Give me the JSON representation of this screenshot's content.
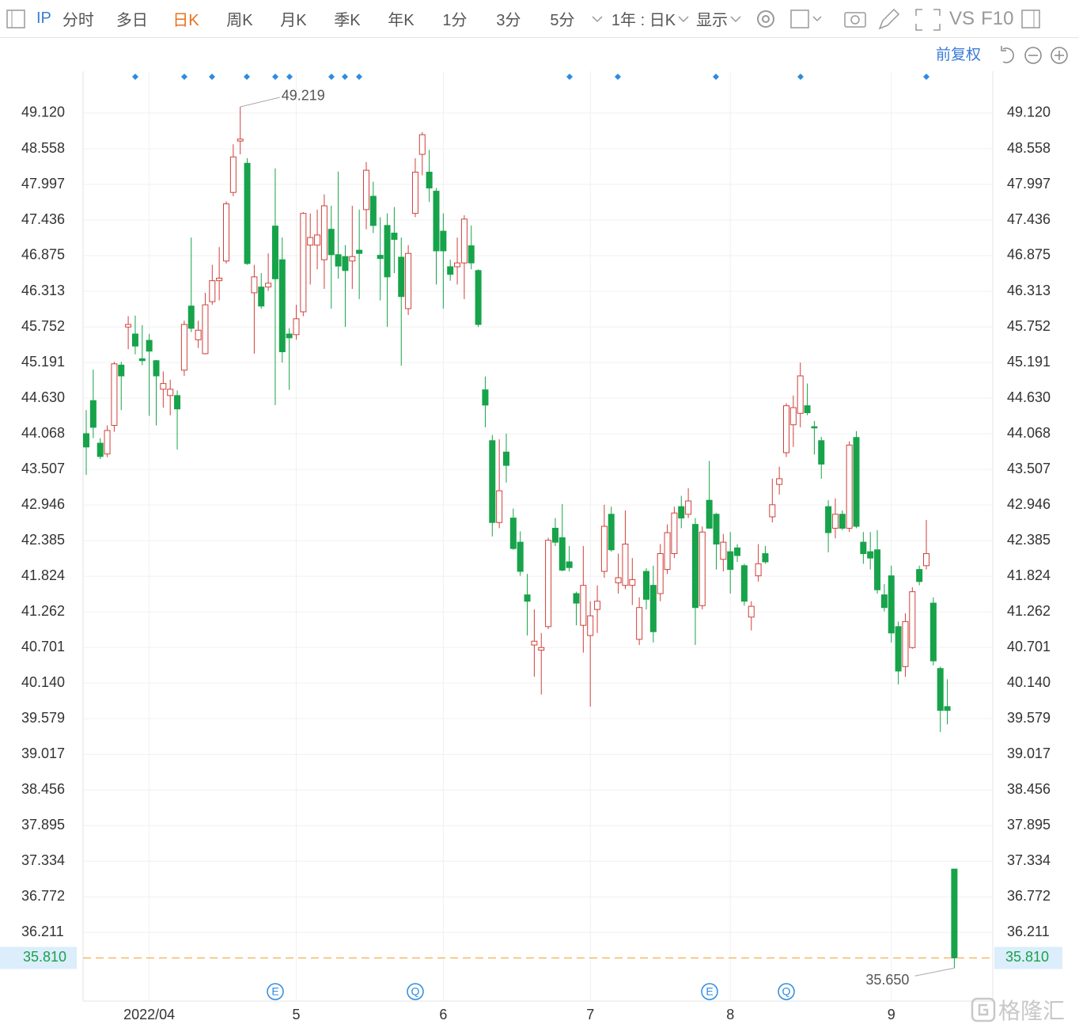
{
  "toolbar": {
    "symbol": "IP",
    "tabs": [
      "分时",
      "多日",
      "日K",
      "周K",
      "月K",
      "季K",
      "年K",
      "1分",
      "3分",
      "5分"
    ],
    "active": "日K",
    "range": "1年 : 日K",
    "display": "显示",
    "vs": "VS",
    "f10": "F10"
  },
  "adjust": "前复权",
  "watermark": "格隆汇",
  "events": [
    "E",
    "Q",
    "E",
    "Q"
  ],
  "chart_data": {
    "type": "candlestick",
    "up_color": "#d0413c",
    "down_color": "#17a34a",
    "last_color": "#f0a030",
    "grid": true,
    "ylim": [
      35.13,
      49.78
    ],
    "yticks": [
      {
        "value": 49.12,
        "label": "49.120"
      },
      {
        "value": 48.558,
        "label": "48.558"
      },
      {
        "value": 47.997,
        "label": "47.997"
      },
      {
        "value": 47.436,
        "label": "47.436"
      },
      {
        "value": 46.875,
        "label": "46.875"
      },
      {
        "value": 46.313,
        "label": "46.313"
      },
      {
        "value": 45.752,
        "label": "45.752"
      },
      {
        "value": 45.191,
        "label": "45.191"
      },
      {
        "value": 44.63,
        "label": "44.630"
      },
      {
        "value": 44.068,
        "label": "44.068"
      },
      {
        "value": 43.507,
        "label": "43.507"
      },
      {
        "value": 42.946,
        "label": "42.946"
      },
      {
        "value": 42.385,
        "label": "42.385"
      },
      {
        "value": 41.824,
        "label": "41.824"
      },
      {
        "value": 41.262,
        "label": "41.262"
      },
      {
        "value": 40.701,
        "label": "40.701"
      },
      {
        "value": 40.14,
        "label": "40.140"
      },
      {
        "value": 39.579,
        "label": "39.579"
      },
      {
        "value": 39.017,
        "label": "39.017"
      },
      {
        "value": 38.456,
        "label": "38.456"
      },
      {
        "value": 37.895,
        "label": "37.895"
      },
      {
        "value": 37.334,
        "label": "37.334"
      },
      {
        "value": 36.772,
        "label": "36.772"
      },
      {
        "value": 36.211,
        "label": "36.211"
      }
    ],
    "categories": [
      null,
      null,
      null,
      null,
      null,
      null,
      null,
      null,
      null,
      "2022/04",
      null,
      null,
      null,
      null,
      null,
      null,
      null,
      null,
      null,
      null,
      null,
      null,
      null,
      null,
      null,
      null,
      null,
      null,
      null,
      null,
      "5",
      null,
      null,
      null,
      null,
      null,
      null,
      null,
      null,
      null,
      null,
      null,
      null,
      null,
      null,
      null,
      null,
      null,
      null,
      null,
      null,
      "6",
      null,
      null,
      null,
      null,
      null,
      null,
      null,
      null,
      null,
      null,
      null,
      null,
      null,
      null,
      null,
      null,
      null,
      null,
      null,
      null,
      "7",
      null,
      null,
      null,
      null,
      null,
      null,
      null,
      null,
      null,
      null,
      null,
      null,
      null,
      null,
      null,
      null,
      null,
      null,
      null,
      "8",
      null,
      null,
      null,
      null,
      null,
      null,
      null,
      null,
      null,
      null,
      null,
      null,
      null,
      null,
      null,
      null,
      null,
      null,
      null,
      null,
      null,
      null,
      "9",
      null,
      null,
      null,
      null,
      null,
      null,
      null,
      null,
      null
    ],
    "open": [
      44.07,
      44.59,
      43.92,
      43.75,
      44.2,
      45.15,
      45.75,
      45.64,
      45.25,
      45.54,
      45.22,
      44.77,
      44.67,
      44.67,
      45.07,
      46.08,
      45.55,
      45.33,
      46.15,
      46.48,
      46.79,
      47.87,
      48.68,
      48.33,
      46.29,
      46.38,
      46.38,
      47.34,
      46.81,
      45.64,
      45.63,
      45.99,
      47.04,
      47.04,
      46.81,
      47.29,
      46.89,
      46.86,
      46.79,
      46.96,
      47.6,
      47.81,
      46.88,
      47.35,
      47.23,
      46.85,
      46.04,
      47.54,
      48.47,
      48.19,
      47.89,
      47.26,
      46.7,
      46.7,
      46.76,
      47.03,
      46.64,
      44.76,
      43.96,
      42.67,
      43.78,
      42.74,
      42.36,
      41.53,
      40.74,
      40.66,
      41.03,
      42.58,
      42.43,
      42.05,
      41.55,
      41.05,
      40.89,
      41.3,
      41.9,
      42.8,
      41.72,
      41.68,
      41.68,
      40.83,
      41.9,
      41.68,
      41.55,
      41.93,
      42.18,
      42.92,
      42.8,
      42.64,
      41.36,
      43.02,
      42.8,
      42.09,
      42.21,
      42.27,
      41.99,
      41.18,
      41.83,
      42.18,
      42.76,
      43.27,
      43.77,
      44.21,
      44.39,
      44.51,
      44.18,
      43.96,
      42.92,
      42.58,
      42.8,
      42.58,
      44.01,
      42.36,
      42.21,
      42.24,
      41.53,
      41.83,
      41.03,
      40.4,
      40.7,
      41.93,
      41.99,
      41.4,
      40.37,
      39.77,
      37.21
    ],
    "high": [
      44.44,
      45.08,
      44.0,
      44.2,
      45.2,
      45.2,
      45.92,
      45.93,
      45.78,
      45.64,
      45.23,
      45.05,
      44.92,
      44.75,
      45.85,
      47.16,
      45.85,
      46.29,
      46.73,
      47.01,
      47.73,
      48.63,
      49.219,
      48.41,
      46.73,
      46.6,
      46.91,
      48.25,
      47.16,
      45.73,
      46.1,
      47.56,
      47.54,
      47.6,
      47.84,
      47.66,
      48.2,
      47.04,
      47.66,
      47.6,
      48.35,
      48.04,
      47.48,
      47.54,
      47.64,
      47.16,
      47.04,
      48.41,
      48.82,
      48.54,
      47.94,
      47.54,
      46.81,
      47.16,
      47.51,
      47.35,
      46.66,
      44.97,
      44.05,
      43.98,
      44.07,
      42.89,
      42.53,
      41.86,
      41.3,
      40.93,
      42.43,
      42.74,
      42.96,
      42.3,
      41.58,
      42.3,
      41.43,
      41.68,
      42.95,
      42.92,
      42.18,
      42.86,
      42.11,
      41.49,
      41.95,
      41.99,
      42.33,
      42.64,
      42.92,
      43.09,
      43.21,
      42.74,
      42.61,
      43.64,
      42.82,
      42.49,
      42.52,
      42.33,
      42.02,
      41.43,
      42.33,
      42.3,
      43.36,
      43.55,
      44.55,
      44.67,
      45.19,
      44.86,
      44.27,
      44.02,
      43.02,
      43.05,
      42.86,
      43.95,
      44.11,
      42.52,
      42.52,
      42.55,
      41.7,
      41.99,
      41.11,
      41.24,
      41.65,
      41.99,
      42.71,
      41.49,
      40.4,
      40.2,
      37.21
    ],
    "low": [
      43.42,
      44.0,
      43.67,
      43.7,
      44.1,
      44.44,
      45.4,
      45.32,
      45.15,
      44.35,
      44.2,
      44.48,
      44.36,
      43.82,
      44.98,
      45.67,
      45.42,
      45.32,
      46.1,
      46.17,
      46.75,
      47.81,
      48.47,
      46.73,
      45.33,
      46.04,
      46.32,
      44.52,
      45.19,
      44.76,
      45.55,
      45.92,
      46.42,
      46.66,
      46.35,
      46.04,
      46.51,
      45.75,
      46.35,
      46.19,
      47.29,
      47.23,
      46.17,
      45.75,
      46.6,
      45.14,
      45.94,
      47.48,
      48.14,
      47.72,
      46.42,
      46.04,
      46.48,
      46.42,
      46.19,
      46.66,
      45.75,
      44.17,
      42.45,
      42.58,
      43.3,
      42.24,
      41.83,
      40.89,
      40.24,
      39.96,
      40.99,
      42.3,
      41.9,
      41.9,
      41.05,
      40.62,
      39.77,
      40.93,
      41.8,
      42.21,
      41.55,
      41.62,
      41.37,
      40.74,
      41.3,
      40.78,
      41.43,
      41.86,
      42.11,
      42.58,
      42.74,
      40.74,
      41.3,
      42.58,
      41.93,
      41.9,
      41.55,
      42.05,
      41.36,
      40.97,
      41.74,
      42.02,
      42.67,
      43.11,
      43.7,
      43.86,
      44.17,
      44.36,
      43.74,
      43.36,
      42.2,
      42.42,
      42.55,
      42.52,
      42.58,
      42.02,
      41.93,
      41.55,
      41.27,
      40.78,
      40.12,
      40.24,
      40.68,
      41.68,
      41.93,
      40.42,
      39.37,
      39.49,
      35.65
    ],
    "close": [
      43.86,
      44.17,
      43.71,
      44.12,
      45.17,
      44.98,
      45.79,
      45.45,
      45.22,
      45.37,
      44.98,
      44.86,
      44.77,
      44.46,
      45.79,
      45.73,
      45.7,
      46.1,
      46.48,
      46.52,
      47.69,
      48.43,
      48.71,
      46.75,
      46.54,
      46.08,
      46.44,
      46.51,
      45.36,
      45.58,
      45.88,
      47.54,
      47.16,
      47.2,
      47.66,
      46.89,
      46.71,
      46.64,
      46.86,
      46.91,
      48.22,
      47.35,
      46.83,
      46.54,
      47.13,
      46.23,
      46.91,
      48.19,
      48.78,
      47.94,
      46.95,
      46.95,
      46.58,
      46.76,
      47.45,
      46.76,
      45.79,
      44.52,
      42.67,
      43.17,
      43.57,
      42.26,
      41.9,
      41.43,
      40.8,
      40.7,
      42.39,
      42.36,
      41.92,
      41.96,
      41.4,
      41.68,
      41.2,
      41.43,
      42.61,
      42.24,
      41.8,
      42.33,
      41.77,
      41.33,
      41.46,
      40.95,
      42.18,
      42.51,
      42.82,
      42.74,
      43.01,
      41.33,
      42.52,
      42.58,
      42.33,
      42.36,
      41.93,
      42.15,
      41.43,
      41.35,
      42.02,
      42.05,
      42.95,
      43.36,
      44.51,
      44.48,
      44.98,
      44.4,
      44.16,
      43.59,
      42.51,
      42.8,
      42.58,
      43.89,
      42.61,
      42.18,
      42.11,
      41.61,
      41.33,
      40.93,
      40.33,
      41.11,
      41.58,
      41.74,
      42.18,
      40.49,
      39.71,
      39.71,
      35.81
    ],
    "max_annotation": 49.219,
    "min_annotation": {
      "value": 35.65,
      "label": "35.650"
    },
    "last_price": {
      "value": 35.81,
      "label": "35.810"
    }
  }
}
